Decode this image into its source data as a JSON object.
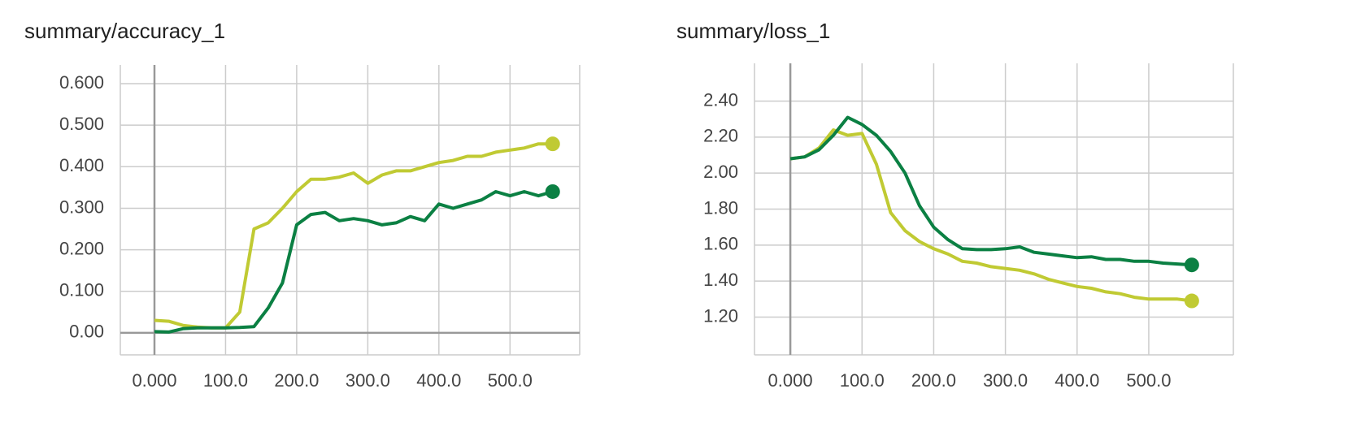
{
  "chart_data": [
    {
      "type": "line",
      "title": "summary/accuracy_1",
      "x": [
        0,
        20,
        40,
        60,
        80,
        100,
        120,
        140,
        160,
        180,
        200,
        220,
        240,
        260,
        280,
        300,
        320,
        340,
        360,
        380,
        400,
        420,
        440,
        460,
        480,
        500,
        520,
        540,
        560
      ],
      "series": [
        {
          "color": "#c0ca33",
          "values": [
            0.03,
            0.028,
            0.018,
            0.014,
            0.012,
            0.012,
            0.05,
            0.25,
            0.265,
            0.3,
            0.34,
            0.37,
            0.37,
            0.375,
            0.385,
            0.36,
            0.38,
            0.39,
            0.39,
            0.4,
            0.41,
            0.415,
            0.425,
            0.425,
            0.435,
            0.44,
            0.445,
            0.455,
            0.455
          ]
        },
        {
          "color": "#0b8043",
          "values": [
            0.003,
            0.002,
            0.01,
            0.012,
            0.012,
            0.012,
            0.013,
            0.015,
            0.06,
            0.12,
            0.26,
            0.285,
            0.29,
            0.27,
            0.275,
            0.27,
            0.26,
            0.265,
            0.28,
            0.27,
            0.31,
            0.3,
            0.31,
            0.32,
            0.34,
            0.33,
            0.34,
            0.33,
            0.34
          ]
        }
      ],
      "xlim": [
        -48,
        598
      ],
      "ylim": [
        -0.053,
        0.645
      ],
      "xticks": [
        {
          "value": 0,
          "label": "0.000"
        },
        {
          "value": 100,
          "label": "100.0"
        },
        {
          "value": 200,
          "label": "200.0"
        },
        {
          "value": 300,
          "label": "300.0"
        },
        {
          "value": 400,
          "label": "400.0"
        },
        {
          "value": 500,
          "label": "500.0"
        }
      ],
      "yticks": [
        {
          "value": 0,
          "label": "0.00"
        },
        {
          "value": 0.1,
          "label": "0.100"
        },
        {
          "value": 0.2,
          "label": "0.200"
        },
        {
          "value": 0.3,
          "label": "0.300"
        },
        {
          "value": 0.4,
          "label": "0.400"
        },
        {
          "value": 0.5,
          "label": "0.500"
        },
        {
          "value": 0.6,
          "label": "0.600"
        }
      ],
      "grid": true
    },
    {
      "type": "line",
      "title": "summary/loss_1",
      "x": [
        0,
        20,
        40,
        60,
        80,
        100,
        120,
        140,
        160,
        180,
        200,
        220,
        240,
        260,
        280,
        300,
        320,
        340,
        360,
        380,
        400,
        420,
        440,
        460,
        480,
        500,
        520,
        540,
        560
      ],
      "series": [
        {
          "color": "#c0ca33",
          "values": [
            2.08,
            2.09,
            2.14,
            2.24,
            2.21,
            2.22,
            2.05,
            1.78,
            1.68,
            1.62,
            1.58,
            1.55,
            1.51,
            1.5,
            1.48,
            1.47,
            1.46,
            1.44,
            1.41,
            1.39,
            1.37,
            1.36,
            1.34,
            1.33,
            1.31,
            1.3,
            1.3,
            1.3,
            1.29
          ]
        },
        {
          "color": "#0b8043",
          "values": [
            2.08,
            2.09,
            2.13,
            2.21,
            2.31,
            2.27,
            2.21,
            2.12,
            2.0,
            1.82,
            1.7,
            1.63,
            1.58,
            1.575,
            1.575,
            1.58,
            1.59,
            1.56,
            1.55,
            1.54,
            1.53,
            1.535,
            1.52,
            1.52,
            1.51,
            1.51,
            1.5,
            1.495,
            1.49
          ]
        }
      ],
      "xlim": [
        -50,
        618
      ],
      "ylim": [
        0.99,
        2.61
      ],
      "xticks": [
        {
          "value": 0,
          "label": "0.000"
        },
        {
          "value": 100,
          "label": "100.0"
        },
        {
          "value": 200,
          "label": "200.0"
        },
        {
          "value": 300,
          "label": "300.0"
        },
        {
          "value": 400,
          "label": "400.0"
        },
        {
          "value": 500,
          "label": "500.0"
        }
      ],
      "yticks": [
        {
          "value": 1.2,
          "label": "1.20"
        },
        {
          "value": 1.4,
          "label": "1.40"
        },
        {
          "value": 1.6,
          "label": "1.60"
        },
        {
          "value": 1.8,
          "label": "1.80"
        },
        {
          "value": 2.0,
          "label": "2.00"
        },
        {
          "value": 2.2,
          "label": "2.20"
        },
        {
          "value": 2.4,
          "label": "2.40"
        }
      ],
      "grid": true
    }
  ]
}
